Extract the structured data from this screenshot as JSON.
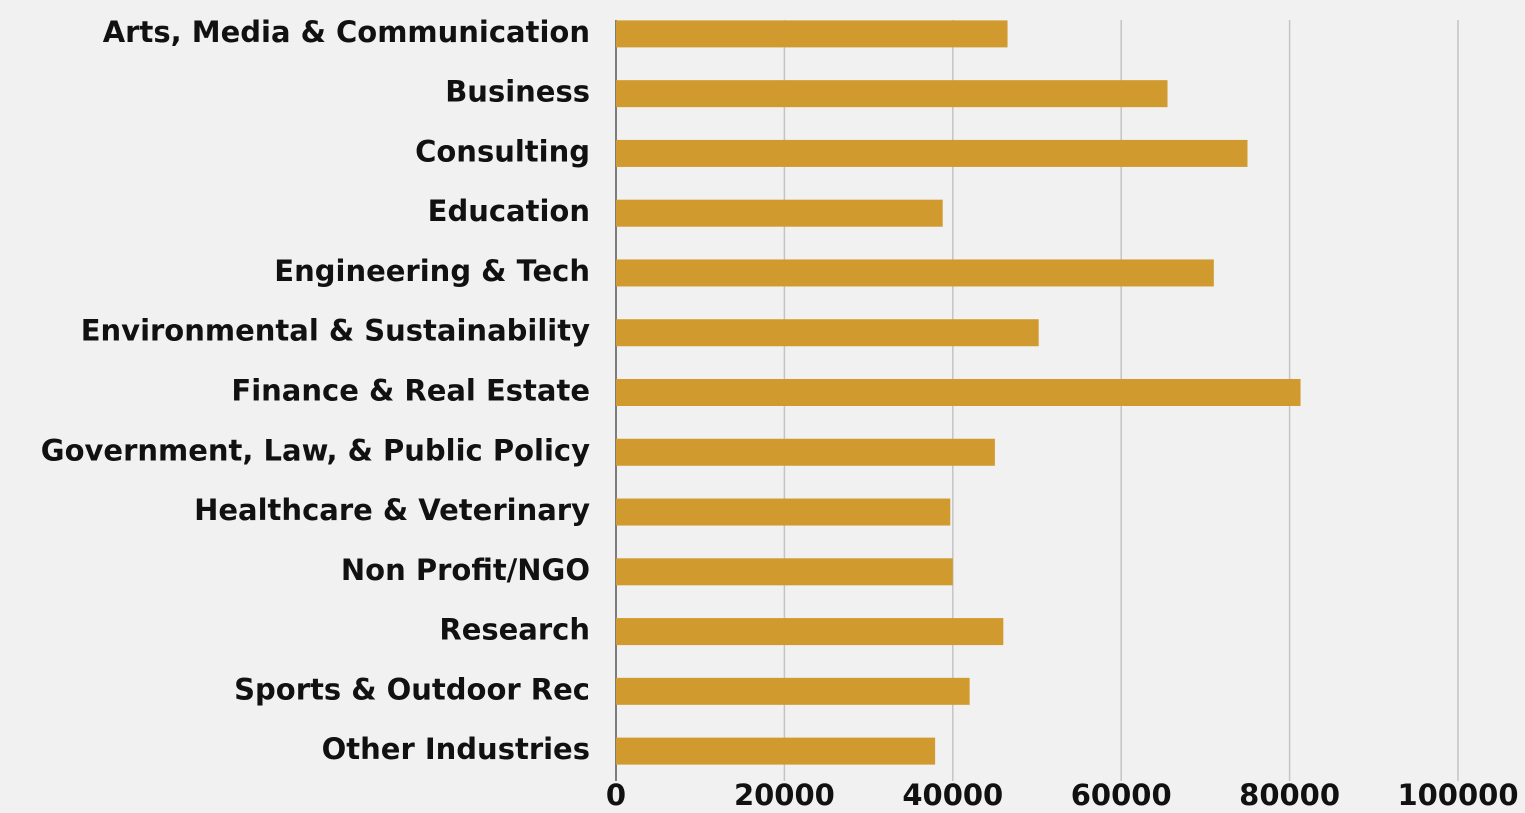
{
  "chart_data": {
    "type": "bar",
    "orientation": "horizontal",
    "categories": [
      "Arts, Media & Communication",
      "Business",
      "Consulting",
      "Education",
      "Engineering & Tech",
      "Environmental & Sustainability",
      "Finance & Real Estate",
      "Government, Law, & Public Policy",
      "Healthcare & Veterinary",
      "Non Profit/NGO",
      "Research",
      "Sports & Outdoor Rec",
      "Other Industries"
    ],
    "values": [
      46500,
      65500,
      75000,
      38800,
      71000,
      50200,
      81300,
      45000,
      39700,
      40000,
      46000,
      42000,
      37900
    ],
    "color": "#d19a2e",
    "xlim": [
      0,
      100000
    ],
    "xticks": [
      0,
      20000,
      40000,
      60000,
      80000,
      100000
    ],
    "grid": true
  }
}
